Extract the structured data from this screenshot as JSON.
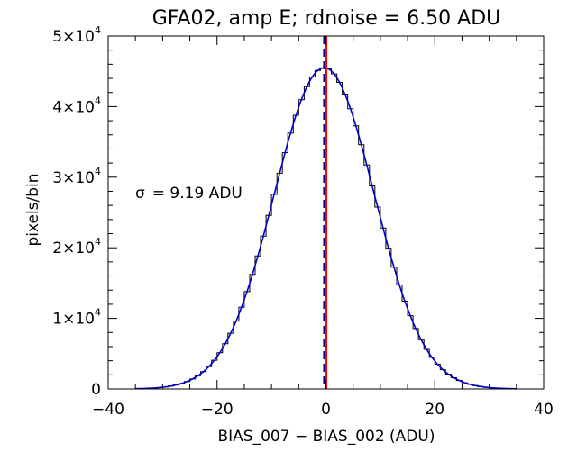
{
  "chart_data": {
    "type": "line",
    "title": "GFA02, amp E; rdnoise = 6.50 ADU",
    "xlabel": "BIAS_007 − BIAS_002 (ADU)",
    "ylabel": "pixels/bin",
    "xlim": [
      -40,
      40
    ],
    "ylim": [
      0,
      50000
    ],
    "x_ticks": [
      -40,
      -20,
      0,
      20,
      40
    ],
    "y_ticks": [
      {
        "value": 0,
        "mant": "0",
        "exp": ""
      },
      {
        "value": 10000,
        "mant": "1×10",
        "exp": "4"
      },
      {
        "value": 20000,
        "mant": "2×10",
        "exp": "4"
      },
      {
        "value": 30000,
        "mant": "3×10",
        "exp": "4"
      },
      {
        "value": 40000,
        "mant": "4×10",
        "exp": "4"
      },
      {
        "value": 50000,
        "mant": "5×10",
        "exp": "4"
      }
    ],
    "annotation": {
      "symbol": "σ",
      "text": "= 9.19 ADU"
    },
    "fit": {
      "amplitude": 45500,
      "mean": -0.3,
      "sigma": 9.19,
      "x_range": [
        -35,
        35
      ],
      "color": "#0000cc"
    },
    "histogram": {
      "bin_width": 1,
      "x_range": [
        -35,
        35
      ],
      "color": "#000000"
    },
    "markers": [
      {
        "x": 0,
        "color": "#ff0000",
        "style": "solid"
      },
      {
        "x": -0.3,
        "color": "#000080",
        "style": "dashed"
      }
    ]
  }
}
